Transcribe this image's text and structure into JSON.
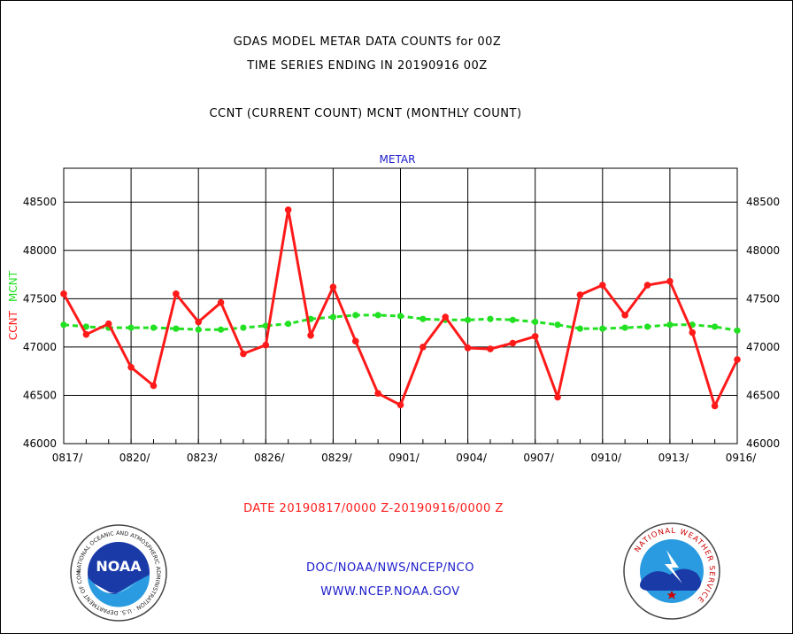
{
  "header": {
    "title1": "GDAS MODEL METAR DATA COUNTS for 00Z",
    "title2": "TIME SERIES ENDING IN 20190916 00Z",
    "subtitle": "CCNT (CURRENT COUNT) MCNT (MONTHLY COUNT)"
  },
  "footer": {
    "date_range": "DATE 20190817/0000 Z-20190916/0000 Z",
    "org": "DOC/NOAA/NWS/NCEP/NCO",
    "url": "WWW.NCEP.NOAA.GOV"
  },
  "logos": {
    "noaa_text": "NOAA",
    "noaa_ring": "NATIONAL OCEANIC AND ATMOSPHERIC ADMINISTRATION · U.S. DEPARTMENT OF COMMERCE",
    "nws_ring": "NATIONAL WEATHER SERVICE"
  },
  "colors": {
    "ccnt": "#ff1a1a",
    "mcnt": "#22e022",
    "title": "#000000",
    "footer_blue": "#1a1acc",
    "footer_red": "#ff1a1a"
  },
  "chart_data": {
    "type": "line",
    "title": "METAR",
    "ylabel_left": [
      "CCNT",
      "MCNT"
    ],
    "ylim": [
      46000,
      48850
    ],
    "yticks": [
      46000,
      46500,
      47000,
      47500,
      48000,
      48500
    ],
    "xticks": [
      "0817/",
      "0820/",
      "0823/",
      "0826/",
      "0829/",
      "0901/",
      "0904/",
      "0907/",
      "0910/",
      "0913/",
      "0916/"
    ],
    "grid": true,
    "series": [
      {
        "name": "CCNT",
        "values": [
          47550,
          47130,
          47240,
          46790,
          46600,
          47550,
          47260,
          47460,
          46930,
          47020,
          48420,
          47120,
          47620,
          47060,
          46520,
          46400,
          47000,
          47310,
          46990,
          46980,
          47040,
          47110,
          46480,
          47540,
          47640,
          47330,
          47640,
          47680,
          47150,
          46390,
          46870
        ]
      },
      {
        "name": "MCNT",
        "values": [
          47230,
          47210,
          47200,
          47200,
          47200,
          47190,
          47180,
          47180,
          47200,
          47220,
          47240,
          47290,
          47310,
          47330,
          47330,
          47320,
          47290,
          47280,
          47280,
          47290,
          47280,
          47260,
          47230,
          47190,
          47190,
          47200,
          47210,
          47230,
          47230,
          47210,
          47170
        ]
      }
    ]
  }
}
